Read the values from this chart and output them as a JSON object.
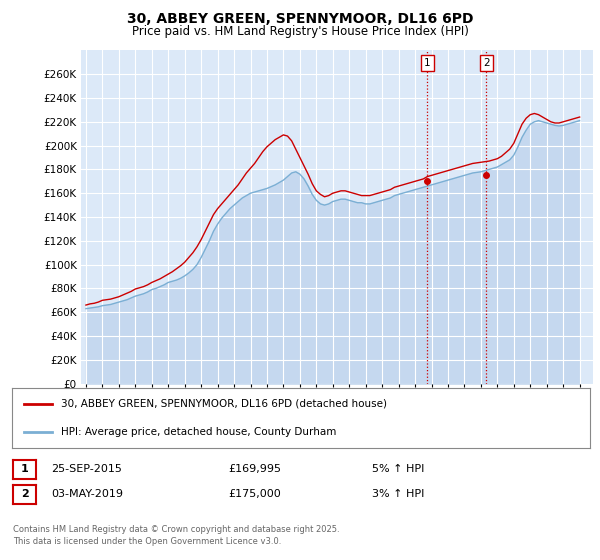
{
  "title": "30, ABBEY GREEN, SPENNYMOOR, DL16 6PD",
  "subtitle": "Price paid vs. HM Land Registry's House Price Index (HPI)",
  "ylim": [
    0,
    280000
  ],
  "yticks": [
    0,
    20000,
    40000,
    60000,
    80000,
    100000,
    120000,
    140000,
    160000,
    180000,
    200000,
    220000,
    240000,
    260000
  ],
  "xlim_start": 1994.7,
  "xlim_end": 2025.8,
  "bg_color": "#FFFFFF",
  "plot_bg_color": "#DCE9F8",
  "grid_color": "#FFFFFF",
  "red_color": "#CC0000",
  "blue_color": "#7BAFD4",
  "blue_fill_color": "#C5D8EF",
  "sale1_x": 2015.73,
  "sale1_y": 169995,
  "sale2_x": 2019.33,
  "sale2_y": 175000,
  "legend_label_red": "30, ABBEY GREEN, SPENNYMOOR, DL16 6PD (detached house)",
  "legend_label_blue": "HPI: Average price, detached house, County Durham",
  "footnote": "Contains HM Land Registry data © Crown copyright and database right 2025.\nThis data is licensed under the Open Government Licence v3.0.",
  "table_row1": [
    "1",
    "25-SEP-2015",
    "£169,995",
    "5% ↑ HPI"
  ],
  "table_row2": [
    "2",
    "03-MAY-2019",
    "£175,000",
    "3% ↑ HPI"
  ],
  "hpi_years": [
    1995.0,
    1995.25,
    1995.5,
    1995.75,
    1996.0,
    1996.25,
    1996.5,
    1996.75,
    1997.0,
    1997.25,
    1997.5,
    1997.75,
    1998.0,
    1998.25,
    1998.5,
    1998.75,
    1999.0,
    1999.25,
    1999.5,
    1999.75,
    2000.0,
    2000.25,
    2000.5,
    2000.75,
    2001.0,
    2001.25,
    2001.5,
    2001.75,
    2002.0,
    2002.25,
    2002.5,
    2002.75,
    2003.0,
    2003.25,
    2003.5,
    2003.75,
    2004.0,
    2004.25,
    2004.5,
    2004.75,
    2005.0,
    2005.25,
    2005.5,
    2005.75,
    2006.0,
    2006.25,
    2006.5,
    2006.75,
    2007.0,
    2007.25,
    2007.5,
    2007.75,
    2008.0,
    2008.25,
    2008.5,
    2008.75,
    2009.0,
    2009.25,
    2009.5,
    2009.75,
    2010.0,
    2010.25,
    2010.5,
    2010.75,
    2011.0,
    2011.25,
    2011.5,
    2011.75,
    2012.0,
    2012.25,
    2012.5,
    2012.75,
    2013.0,
    2013.25,
    2013.5,
    2013.75,
    2014.0,
    2014.25,
    2014.5,
    2014.75,
    2015.0,
    2015.25,
    2015.5,
    2015.75,
    2016.0,
    2016.25,
    2016.5,
    2016.75,
    2017.0,
    2017.25,
    2017.5,
    2017.75,
    2018.0,
    2018.25,
    2018.5,
    2018.75,
    2019.0,
    2019.25,
    2019.5,
    2019.75,
    2020.0,
    2020.25,
    2020.5,
    2020.75,
    2021.0,
    2021.25,
    2021.5,
    2021.75,
    2022.0,
    2022.25,
    2022.5,
    2022.75,
    2023.0,
    2023.25,
    2023.5,
    2023.75,
    2024.0,
    2024.25,
    2024.5,
    2024.75,
    2025.0
  ],
  "hpi_values": [
    63000,
    63500,
    64000,
    64500,
    65500,
    66000,
    66500,
    67500,
    68500,
    69500,
    70500,
    72000,
    73500,
    74500,
    75500,
    77000,
    79000,
    80000,
    81500,
    83000,
    85000,
    86000,
    87000,
    88500,
    90500,
    93000,
    96000,
    100000,
    106000,
    113000,
    120000,
    128000,
    134000,
    139000,
    143000,
    147000,
    150000,
    153000,
    156000,
    158000,
    160000,
    161000,
    162000,
    163000,
    164000,
    165500,
    167000,
    169000,
    171000,
    174000,
    177000,
    178000,
    176000,
    172000,
    166000,
    159000,
    154000,
    151000,
    150000,
    151000,
    153000,
    154000,
    155000,
    155000,
    154000,
    153000,
    152000,
    152000,
    151000,
    151000,
    152000,
    153000,
    154000,
    155000,
    156000,
    158000,
    159000,
    160000,
    161000,
    162000,
    163000,
    164000,
    165000,
    166000,
    167000,
    168000,
    169000,
    170000,
    171000,
    172000,
    173000,
    174000,
    175000,
    176000,
    177000,
    177500,
    178000,
    179000,
    180000,
    181000,
    182000,
    184000,
    186000,
    188000,
    192000,
    199000,
    207000,
    213000,
    218000,
    220000,
    221000,
    220000,
    219000,
    218000,
    217000,
    216500,
    217000,
    218000,
    219000,
    220000,
    221000
  ],
  "red_years": [
    1995.0,
    1995.25,
    1995.5,
    1995.75,
    1996.0,
    1996.25,
    1996.5,
    1996.75,
    1997.0,
    1997.25,
    1997.5,
    1997.75,
    1998.0,
    1998.25,
    1998.5,
    1998.75,
    1999.0,
    1999.25,
    1999.5,
    1999.75,
    2000.0,
    2000.25,
    2000.5,
    2000.75,
    2001.0,
    2001.25,
    2001.5,
    2001.75,
    2002.0,
    2002.25,
    2002.5,
    2002.75,
    2003.0,
    2003.25,
    2003.5,
    2003.75,
    2004.0,
    2004.25,
    2004.5,
    2004.75,
    2005.0,
    2005.25,
    2005.5,
    2005.75,
    2006.0,
    2006.25,
    2006.5,
    2006.75,
    2007.0,
    2007.25,
    2007.5,
    2007.75,
    2008.0,
    2008.25,
    2008.5,
    2008.75,
    2009.0,
    2009.25,
    2009.5,
    2009.75,
    2010.0,
    2010.25,
    2010.5,
    2010.75,
    2011.0,
    2011.25,
    2011.5,
    2011.75,
    2012.0,
    2012.25,
    2012.5,
    2012.75,
    2013.0,
    2013.25,
    2013.5,
    2013.75,
    2014.0,
    2014.25,
    2014.5,
    2014.75,
    2015.0,
    2015.25,
    2015.5,
    2015.75,
    2016.0,
    2016.25,
    2016.5,
    2016.75,
    2017.0,
    2017.25,
    2017.5,
    2017.75,
    2018.0,
    2018.25,
    2018.5,
    2018.75,
    2019.0,
    2019.25,
    2019.5,
    2019.75,
    2020.0,
    2020.25,
    2020.5,
    2020.75,
    2021.0,
    2021.25,
    2021.5,
    2021.75,
    2022.0,
    2022.25,
    2022.5,
    2022.75,
    2023.0,
    2023.25,
    2023.5,
    2023.75,
    2024.0,
    2024.25,
    2024.5,
    2024.75,
    2025.0
  ],
  "red_values": [
    66000,
    67000,
    67500,
    68500,
    70000,
    70500,
    71000,
    72000,
    73000,
    74500,
    76000,
    77500,
    79500,
    80500,
    81500,
    83000,
    85000,
    86500,
    88000,
    90000,
    92000,
    94000,
    96500,
    99000,
    102000,
    106000,
    110000,
    115000,
    121000,
    128000,
    135000,
    142000,
    147000,
    151000,
    155000,
    159000,
    163000,
    167000,
    172000,
    177000,
    181000,
    185000,
    190000,
    195000,
    199000,
    202000,
    205000,
    207000,
    209000,
    208000,
    204000,
    197000,
    190000,
    183000,
    176000,
    168000,
    162000,
    159000,
    157000,
    158000,
    160000,
    161000,
    162000,
    162000,
    161000,
    160000,
    159000,
    158000,
    158000,
    158000,
    159000,
    160000,
    161000,
    162000,
    163000,
    165000,
    166000,
    167000,
    168000,
    169000,
    170000,
    171000,
    172000,
    174000,
    175000,
    176000,
    177000,
    178000,
    179000,
    180000,
    181000,
    182000,
    183000,
    184000,
    185000,
    185500,
    186000,
    186500,
    187000,
    188000,
    189000,
    191000,
    194000,
    197000,
    202000,
    210000,
    218000,
    223000,
    226000,
    227000,
    226000,
    224000,
    222000,
    220000,
    219000,
    219000,
    220000,
    221000,
    222000,
    223000,
    224000
  ]
}
